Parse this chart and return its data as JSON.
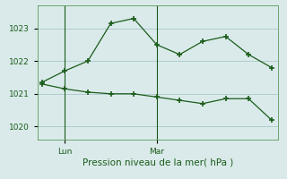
{
  "background_color": "#daeaea",
  "grid_color": "#a8c8c8",
  "line_color": "#1a5c1a",
  "title": "Pression niveau de la mer( hPa )",
  "x_tick_labels": [
    "Lun",
    "Mar"
  ],
  "x_tick_positions": [
    1,
    5
  ],
  "ylim": [
    1019.6,
    1023.7
  ],
  "yticks": [
    1020,
    1021,
    1022,
    1023
  ],
  "line1_x": [
    0,
    1,
    2,
    3,
    4,
    5,
    6,
    7,
    8,
    9,
    10
  ],
  "line1_y": [
    1021.35,
    1021.7,
    1022.0,
    1023.15,
    1023.3,
    1022.5,
    1022.2,
    1022.6,
    1022.75,
    1022.2,
    1021.8
  ],
  "line2_x": [
    0,
    1,
    2,
    3,
    4,
    5,
    6,
    7,
    8,
    9,
    10
  ],
  "line2_y": [
    1021.3,
    1021.15,
    1021.05,
    1021.0,
    1021.0,
    1020.9,
    1020.8,
    1020.7,
    1020.85,
    1020.85,
    1020.2
  ],
  "vline_x": [
    1,
    5
  ],
  "figsize": [
    3.2,
    2.0
  ],
  "dpi": 100
}
